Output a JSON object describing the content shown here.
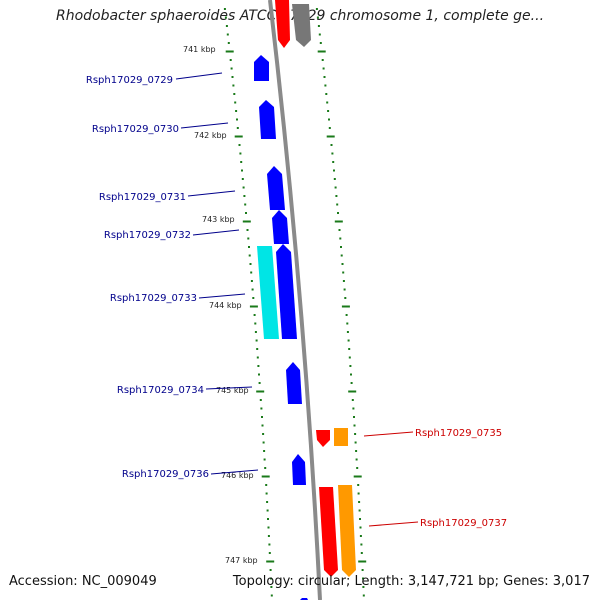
{
  "title": "Rhodobacter sphaeroides ATCC 17029 chromosome 1, complete ge...",
  "accession": "Accession: NC_009049",
  "topology": "Topology: circular; Length: 3,147,721 bp; Genes: 3,017",
  "colors": {
    "backbone": "#8a8a8a",
    "tick": "#1a7a1a",
    "forward_gene": "#0000ff",
    "forward_gene_alt": "#00e5e5",
    "reverse_gene": "#ff0000",
    "reverse_gene_alt": "#ff9900",
    "reverse_other": "#777777",
    "forward_label": "#00008b",
    "reverse_label": "#cc0000"
  },
  "kbp_marks": [
    "741 kbp",
    "742 kbp",
    "743 kbp",
    "744 kbp",
    "745 kbp",
    "746 kbp",
    "747 kbp"
  ],
  "genes_forward": [
    "Rsph17029_0729",
    "Rsph17029_0730",
    "Rsph17029_0731",
    "Rsph17029_0732",
    "Rsph17029_0733",
    "Rsph17029_0734",
    "Rsph17029_0736"
  ],
  "genes_reverse": [
    "Rsph17029_0735",
    "Rsph17029_0737"
  ]
}
